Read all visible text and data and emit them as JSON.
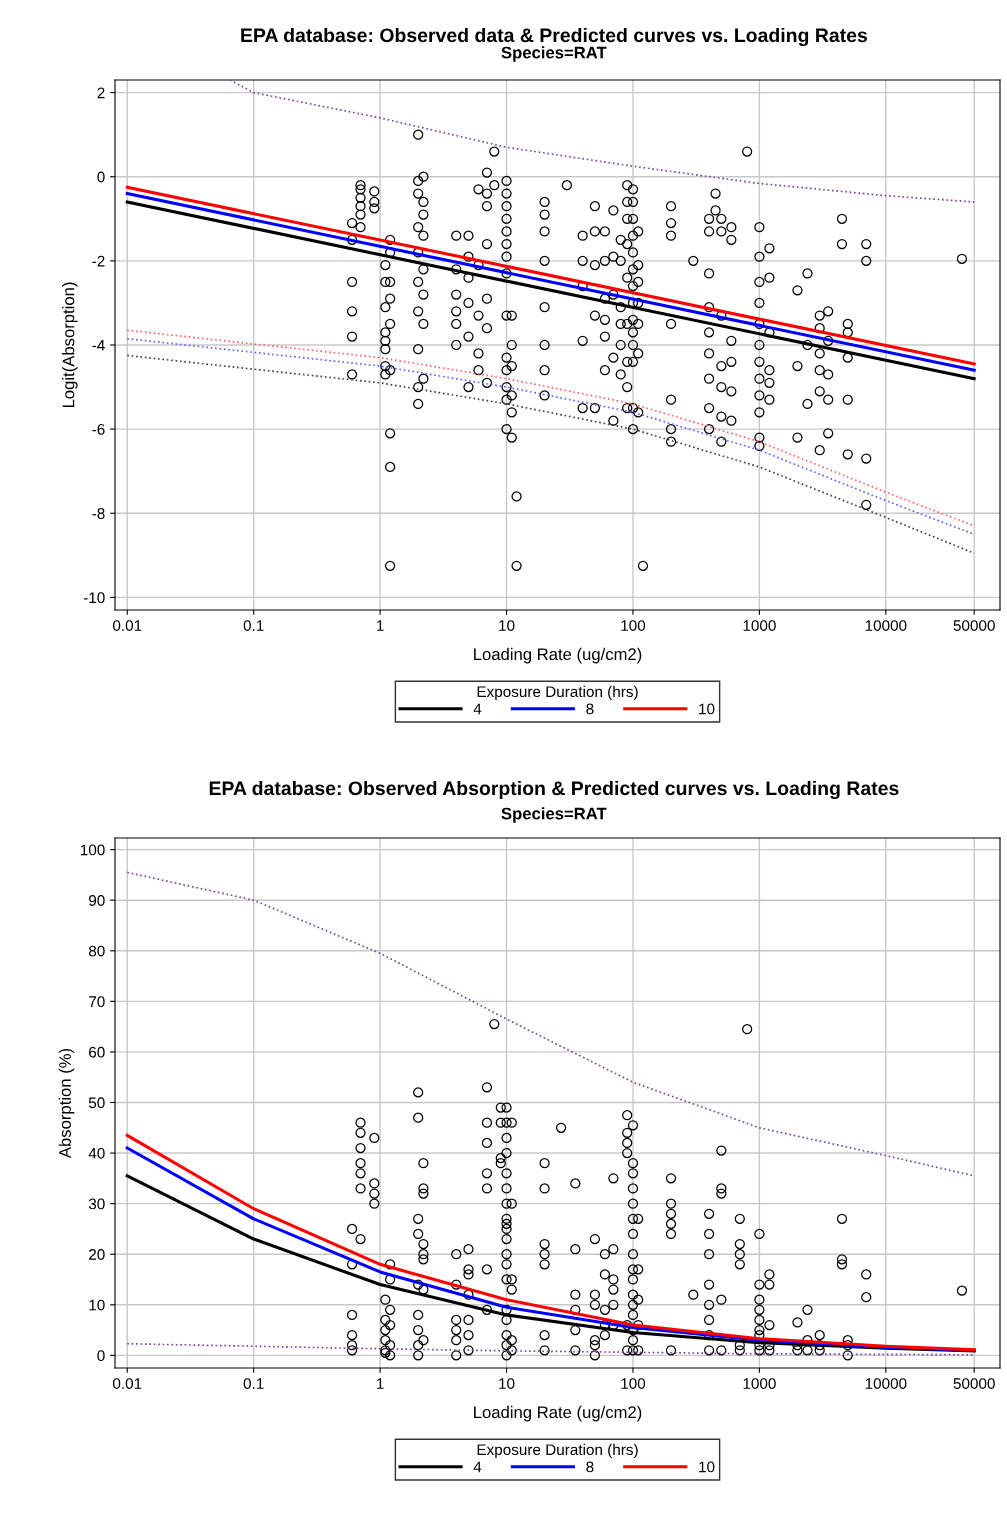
{
  "chart_data": [
    {
      "type": "line",
      "title": "EPA database: Observed data & Predicted curves vs. Loading Rates",
      "subtitle": "Species=RAT",
      "xlabel": "Loading Rate (ug/cm2)",
      "ylabel": "Logit(Absorption)",
      "legend_title": "Exposure Duration (hrs)",
      "log": "x",
      "grid": true,
      "legend": "bottom",
      "xlim": [
        0.008,
        80000
      ],
      "xticks": [
        0.01,
        0.1,
        1,
        10,
        100,
        1000,
        10000,
        50000
      ],
      "ylim": [
        -10.3,
        2.3
      ],
      "yticks": [
        -10,
        -8,
        -6,
        -4,
        -2,
        0,
        2
      ],
      "series": [
        {
          "type": "scatter",
          "marker": "circle",
          "color": "#000000",
          "x": [
            0.6,
            0.6,
            0.6,
            0.6,
            0.6,
            0.6,
            0.7,
            0.7,
            0.7,
            0.7,
            0.7,
            0.7,
            0.9,
            0.9,
            0.9,
            1.1,
            1.1,
            1.1,
            1.1,
            1.1,
            1.1,
            1.1,
            1.1,
            1.2,
            1.2,
            1.2,
            1.2,
            1.2,
            1.2,
            1.2,
            1.2,
            1.2,
            2,
            2,
            2,
            2,
            2,
            2,
            2,
            2,
            2,
            2,
            2.2,
            2.2,
            2.2,
            2.2,
            2.2,
            2.2,
            2.2,
            2.2,
            4,
            4,
            4,
            4,
            4,
            4,
            5,
            5,
            5,
            5,
            5,
            5,
            6,
            6,
            6,
            6,
            6,
            7,
            7,
            7,
            7,
            7,
            7,
            7,
            8,
            8,
            10,
            10,
            10,
            10,
            10,
            10,
            10,
            10,
            10,
            10,
            10,
            10,
            10,
            10,
            11,
            11,
            11,
            11,
            11,
            11,
            12,
            12,
            20,
            20,
            20,
            20,
            20,
            20,
            20,
            20,
            30,
            40,
            40,
            40,
            40,
            40,
            50,
            50,
            50,
            50,
            50,
            60,
            60,
            60,
            60,
            60,
            60,
            70,
            70,
            70,
            70,
            70,
            80,
            80,
            80,
            80,
            80,
            80,
            90,
            90,
            90,
            90,
            90,
            90,
            90,
            90,
            90,
            100,
            100,
            100,
            100,
            100,
            100,
            100,
            100,
            100,
            100,
            100,
            100,
            100,
            100,
            110,
            110,
            110,
            110,
            110,
            110,
            110,
            120,
            200,
            200,
            200,
            200,
            200,
            200,
            200,
            300,
            400,
            400,
            400,
            400,
            400,
            400,
            400,
            400,
            400,
            450,
            450,
            500,
            500,
            500,
            500,
            500,
            500,
            500,
            600,
            600,
            600,
            600,
            600,
            600,
            800,
            1000,
            1000,
            1000,
            1000,
            1000,
            1000,
            1000,
            1000,
            1000,
            1000,
            1000,
            1000,
            1200,
            1200,
            1200,
            1200,
            1200,
            1200,
            2000,
            2000,
            2000,
            2400,
            2400,
            2400,
            3000,
            3000,
            3000,
            3000,
            3000,
            3000,
            3500,
            3500,
            3500,
            3500,
            3500,
            4500,
            4500,
            5000,
            5000,
            5000,
            5000,
            5000,
            7000,
            7000,
            7000,
            7000,
            40000
          ],
          "values": [
            -1.1,
            -1.5,
            -2.5,
            -3.2,
            -3.8,
            -4.7,
            -0.2,
            -0.3,
            -0.5,
            -0.7,
            -0.9,
            -1.2,
            -0.35,
            -0.6,
            -0.75,
            -2.1,
            -2.5,
            -3.1,
            -3.7,
            -3.9,
            -4.1,
            -4.5,
            -4.7,
            -1.5,
            -1.8,
            -2.5,
            -2.9,
            -3.5,
            -4.6,
            -6.1,
            -6.9,
            -9.25,
            1.0,
            -0.1,
            -0.4,
            -1.2,
            -1.8,
            -2.5,
            -3.2,
            -4.1,
            -5.0,
            -5.4,
            0.0,
            -0.6,
            -0.9,
            -1.4,
            -2.2,
            -2.8,
            -3.5,
            -4.8,
            -1.4,
            -2.2,
            -2.8,
            -3.2,
            -3.5,
            -4.0,
            -1.4,
            -1.9,
            -2.4,
            -3.0,
            -3.8,
            -5.0,
            -0.3,
            -2.1,
            -3.3,
            -4.2,
            -4.6,
            0.1,
            -0.4,
            -0.7,
            -1.6,
            -2.9,
            -3.6,
            -4.9,
            0.6,
            -0.2,
            -0.1,
            -0.4,
            -0.7,
            -1.0,
            -1.3,
            -1.6,
            -1.9,
            -2.3,
            -3.3,
            -4.3,
            -4.6,
            -5.0,
            -5.3,
            -6.0,
            -3.3,
            -4.0,
            -4.5,
            -5.2,
            -5.6,
            -6.2,
            -7.6,
            -9.25,
            -0.6,
            -0.9,
            -1.3,
            -2.0,
            -3.1,
            -4.0,
            -4.6,
            -5.2,
            -0.2,
            -1.4,
            -2.0,
            -2.6,
            -3.9,
            -5.5,
            -0.7,
            -1.3,
            -2.1,
            -3.3,
            -5.5,
            -1.3,
            -2.0,
            -2.9,
            -3.4,
            -3.8,
            -4.6,
            -0.8,
            -1.9,
            -2.8,
            -4.3,
            -5.8,
            -1.5,
            -2.0,
            -3.1,
            -3.5,
            -4.0,
            -4.7,
            -0.2,
            -0.6,
            -1.0,
            -1.6,
            -2.4,
            -3.5,
            -4.4,
            -5.0,
            -5.5,
            -0.3,
            -0.6,
            -1.0,
            -1.4,
            -1.8,
            -2.2,
            -2.6,
            -3.0,
            -3.4,
            -3.7,
            -4.0,
            -4.4,
            -5.5,
            -6.0,
            -1.3,
            -2.1,
            -2.5,
            -3.0,
            -3.5,
            -4.2,
            -5.6,
            -9.25,
            -0.7,
            -1.1,
            -1.4,
            -3.5,
            -5.3,
            -6.0,
            -6.3,
            -2.0,
            -1.0,
            -1.3,
            -2.3,
            -3.1,
            -3.7,
            -4.2,
            -4.8,
            -5.5,
            -6.0,
            -0.4,
            -0.8,
            -1.0,
            -1.3,
            -3.3,
            -4.5,
            -5.0,
            -5.7,
            -6.3,
            -1.2,
            -1.5,
            -3.9,
            -4.4,
            -5.1,
            -5.8,
            0.6,
            -1.2,
            -1.9,
            -2.5,
            -3.0,
            -3.5,
            -4.0,
            -4.4,
            -4.8,
            -5.2,
            -5.6,
            -6.2,
            -6.4,
            -1.7,
            -2.4,
            -3.7,
            -4.6,
            -4.9,
            -5.3,
            -2.7,
            -4.5,
            -6.2,
            -2.3,
            -4.0,
            -5.4,
            -3.3,
            -3.6,
            -4.2,
            -4.6,
            -5.1,
            -6.5,
            -3.2,
            -3.9,
            -4.7,
            -5.3,
            -6.1,
            -1.0,
            -1.6,
            -3.5,
            -3.7,
            -4.3,
            -5.3,
            -6.6,
            -1.6,
            -2.0,
            -6.7,
            -7.8,
            -1.95
          ]
        },
        {
          "line_style": "dotted",
          "color": "#8040a0",
          "x": [
            0.065,
            0.1,
            1,
            10,
            100,
            1000,
            10000,
            50000
          ],
          "values": [
            2.3,
            2.0,
            1.4,
            0.7,
            0.25,
            -0.16,
            -0.45,
            -0.6
          ]
        },
        {
          "line_style": "dotted",
          "color": "#ff6060",
          "x": [
            0.01,
            1,
            10,
            100,
            1000,
            10000,
            50000
          ],
          "values": [
            -3.65,
            -4.3,
            -4.8,
            -5.4,
            -6.3,
            -7.5,
            -8.3
          ]
        },
        {
          "line_style": "dotted",
          "color": "#6060ff",
          "x": [
            0.01,
            1,
            10,
            100,
            1000,
            10000,
            50000
          ],
          "values": [
            -3.85,
            -4.5,
            -5.0,
            -5.6,
            -6.5,
            -7.7,
            -8.5
          ]
        },
        {
          "line_style": "dotted",
          "color": "#404040",
          "x": [
            0.01,
            1,
            10,
            100,
            1000,
            10000,
            50000
          ],
          "values": [
            -4.25,
            -4.9,
            -5.4,
            -6.0,
            -6.9,
            -8.1,
            -8.95
          ]
        },
        {
          "name": "4",
          "line_style": "solid",
          "color": "#000000",
          "x": [
            0.01,
            50000
          ],
          "values": [
            -0.6,
            -4.8
          ]
        },
        {
          "name": "8",
          "line_style": "solid",
          "color": "#0000ff",
          "x": [
            0.01,
            50000
          ],
          "values": [
            -0.4,
            -4.6
          ]
        },
        {
          "name": "10",
          "line_style": "solid",
          "color": "#ff0000",
          "x": [
            0.01,
            50000
          ],
          "values": [
            -0.25,
            -4.45
          ]
        }
      ]
    },
    {
      "type": "line",
      "title": "EPA database: Observed Absorption & Predicted curves vs. Loading Rates",
      "subtitle": "Species=RAT",
      "xlabel": "Loading Rate (ug/cm2)",
      "ylabel": "Absorption (%)",
      "legend_title": "Exposure Duration (hrs)",
      "log": "x",
      "grid": true,
      "legend": "bottom",
      "xlim": [
        0.008,
        80000
      ],
      "xticks": [
        0.01,
        0.1,
        1,
        10,
        100,
        1000,
        10000,
        50000
      ],
      "ylim": [
        -2.5,
        102.3
      ],
      "yticks": [
        0,
        10,
        20,
        30,
        40,
        50,
        60,
        70,
        80,
        90,
        100
      ],
      "series": [
        {
          "type": "scatter",
          "marker": "circle",
          "color": "#000000",
          "x": [
            0.6,
            0.6,
            0.6,
            0.6,
            0.6,
            0.6,
            0.7,
            0.7,
            0.7,
            0.7,
            0.7,
            0.7,
            0.7,
            0.9,
            0.9,
            0.9,
            0.9,
            1.1,
            1.1,
            1.1,
            1.1,
            1.1,
            1.1,
            1.2,
            1.2,
            1.2,
            1.2,
            1.2,
            1.2,
            2,
            2,
            2,
            2,
            2,
            2,
            2,
            2,
            2,
            2.2,
            2.2,
            2.2,
            2.2,
            2.2,
            2.2,
            2.2,
            2.2,
            4,
            4,
            4,
            4,
            4,
            4,
            5,
            5,
            5,
            5,
            5,
            5,
            5,
            7,
            7,
            7,
            7,
            7,
            7,
            7,
            8,
            9,
            9,
            9,
            9,
            10,
            10,
            10,
            10,
            10,
            10,
            10,
            10,
            10,
            10,
            10,
            10,
            10,
            10,
            10,
            10,
            10,
            10,
            10,
            11,
            11,
            11,
            11,
            11,
            11,
            20,
            20,
            20,
            20,
            20,
            20,
            20,
            27,
            35,
            35,
            35,
            35,
            35,
            35,
            50,
            50,
            50,
            50,
            50,
            50,
            60,
            60,
            60,
            60,
            60,
            70,
            70,
            70,
            70,
            70,
            70,
            90,
            90,
            90,
            90,
            90,
            90,
            100,
            100,
            100,
            100,
            100,
            100,
            100,
            100,
            100,
            100,
            100,
            100,
            100,
            100,
            100,
            100,
            110,
            110,
            110,
            110,
            110,
            200,
            200,
            200,
            200,
            200,
            200,
            300,
            400,
            400,
            400,
            400,
            400,
            400,
            400,
            400,
            500,
            500,
            500,
            500,
            500,
            700,
            700,
            700,
            700,
            700,
            700,
            800,
            1000,
            1000,
            1000,
            1000,
            1000,
            1000,
            1000,
            1000,
            1000,
            1200,
            1200,
            1200,
            1200,
            1200,
            2000,
            2000,
            2000,
            2400,
            2400,
            2400,
            3000,
            3000,
            3000,
            4500,
            4500,
            4500,
            5000,
            5000,
            5000,
            7000,
            7000,
            40000
          ],
          "values": [
            25,
            18,
            8,
            4,
            2,
            1,
            46,
            44,
            41,
            38,
            36,
            33,
            23,
            43,
            34,
            32,
            30,
            11,
            7,
            5,
            3,
            1,
            0.5,
            18,
            15,
            9,
            6,
            2,
            0,
            52,
            47,
            27,
            24,
            14,
            8,
            5,
            2,
            0,
            38,
            33,
            32,
            22,
            20,
            19,
            13,
            3,
            20,
            14,
            7,
            5,
            3,
            0,
            21,
            17,
            16,
            12,
            7,
            4,
            1,
            53,
            46,
            42,
            36,
            33,
            17,
            9,
            65.5,
            49,
            46,
            39,
            38,
            49,
            46,
            43,
            40,
            36,
            33,
            30,
            27,
            26,
            25,
            23,
            20,
            18,
            15,
            9,
            7,
            4,
            2,
            0,
            46,
            30,
            15,
            13,
            3,
            1,
            38,
            33,
            22,
            20,
            18,
            4,
            1,
            45,
            34,
            21,
            12,
            9,
            5,
            1,
            23,
            12,
            10,
            3,
            2,
            0,
            20,
            16,
            9,
            6,
            4,
            35,
            21,
            15,
            13,
            10,
            6,
            47.5,
            44,
            42,
            40,
            6,
            1,
            45.5,
            38,
            36,
            33,
            30,
            27,
            24,
            20,
            17,
            15,
            12,
            10,
            8,
            5,
            3,
            1,
            27,
            17,
            11,
            6,
            1,
            35,
            30,
            28,
            26,
            24,
            1,
            12,
            28,
            24,
            20,
            14,
            10,
            7,
            4,
            1,
            40.5,
            33,
            32,
            11,
            1,
            27,
            22,
            20,
            18,
            2,
            1,
            64.5,
            24,
            14,
            11,
            9,
            7,
            5,
            4,
            2,
            1,
            16,
            14,
            6,
            2,
            1,
            6.5,
            2,
            1,
            9,
            3,
            1,
            4,
            2,
            1,
            27,
            19,
            18,
            3,
            2,
            0,
            16,
            11.5,
            12.8
          ]
        },
        {
          "line_style": "dotted",
          "color": "#8040a0",
          "x": [
            0.01,
            0.1,
            1,
            10,
            100,
            1000,
            10000,
            50000
          ],
          "values": [
            95.5,
            90,
            79.5,
            66.5,
            54,
            45,
            39.5,
            35.5
          ]
        },
        {
          "line_style": "dotted",
          "color": "#8040a0",
          "x": [
            0.01,
            0.1,
            1,
            10,
            100,
            1000,
            10000,
            50000
          ],
          "values": [
            2.3,
            1.8,
            1.3,
            0.9,
            0.6,
            0.3,
            0.2,
            0.1
          ]
        },
        {
          "name": "4",
          "line_style": "solid",
          "color": "#000000",
          "x": [
            0.01,
            0.1,
            1,
            10,
            100,
            1000,
            10000,
            50000
          ],
          "values": [
            35.5,
            23,
            14,
            8,
            4.5,
            2.5,
            1.4,
            0.9
          ]
        },
        {
          "name": "8",
          "line_style": "solid",
          "color": "#0000ff",
          "x": [
            0.01,
            0.1,
            1,
            10,
            100,
            1000,
            10000,
            50000
          ],
          "values": [
            41,
            27,
            16.5,
            9.5,
            5.5,
            3,
            1.6,
            1.0
          ]
        },
        {
          "name": "10",
          "line_style": "solid",
          "color": "#ff0000",
          "x": [
            0.01,
            0.1,
            1,
            10,
            100,
            1000,
            10000,
            50000
          ],
          "values": [
            43.5,
            29,
            18,
            11,
            6,
            3.3,
            1.8,
            1.1
          ]
        }
      ]
    }
  ]
}
